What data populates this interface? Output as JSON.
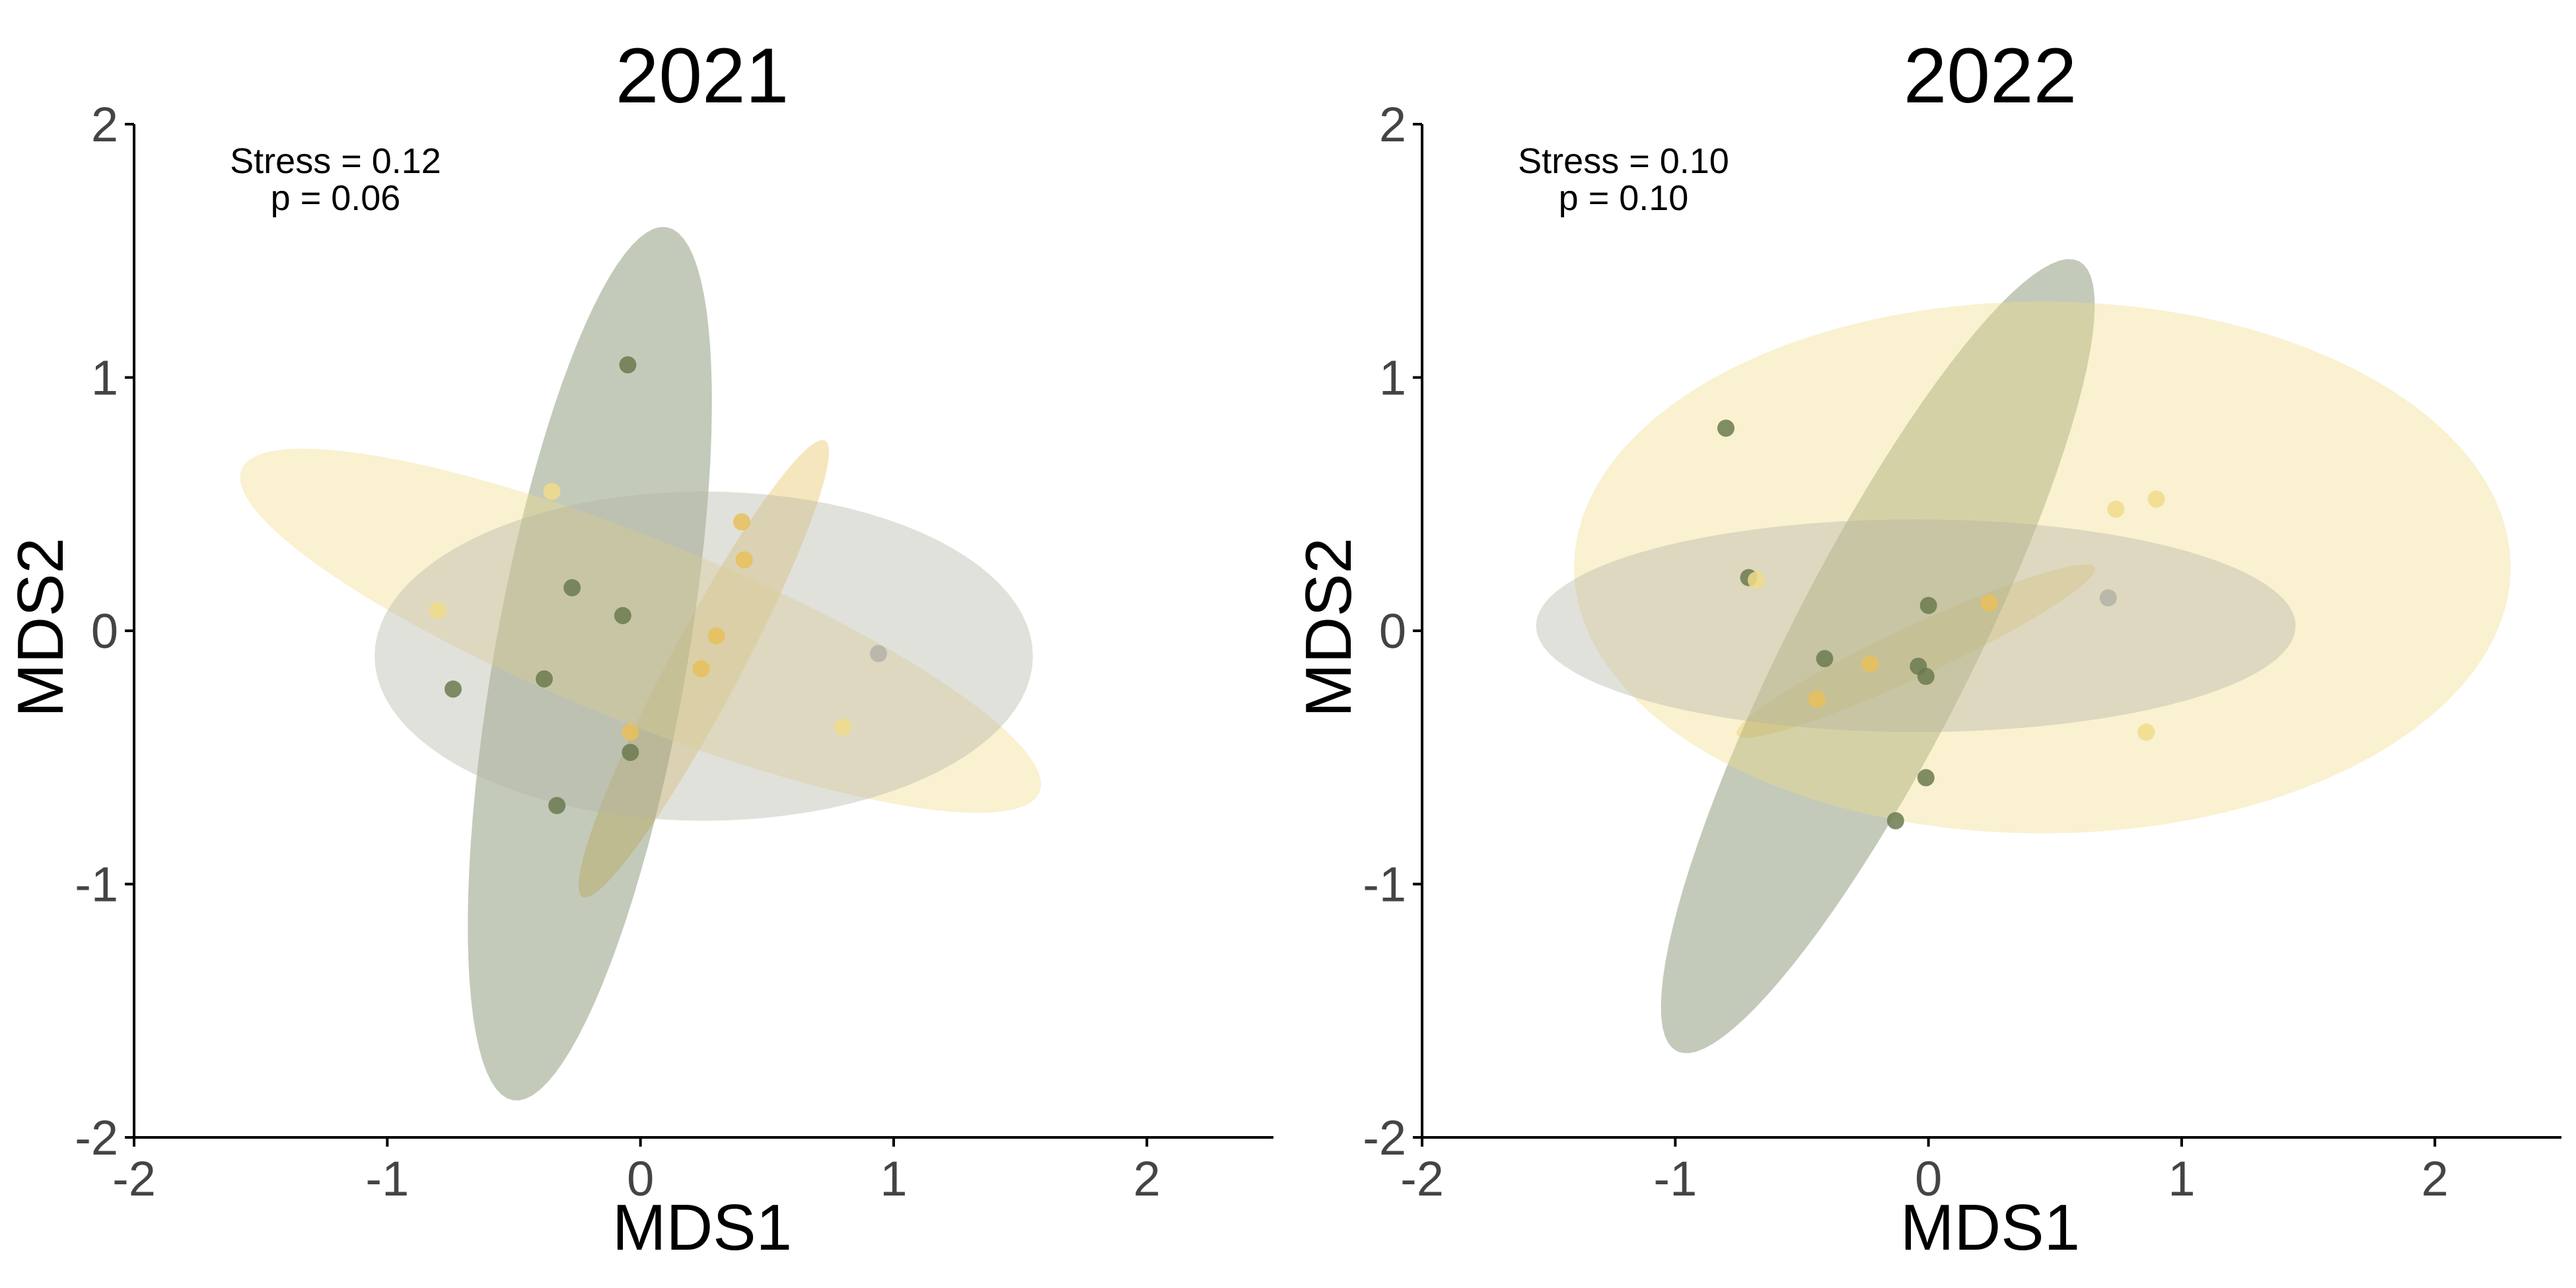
{
  "chart_data": [
    {
      "type": "scatter",
      "title": "2021",
      "xlabel": "MDS1",
      "ylabel": "MDS2",
      "xlim": [
        -2,
        2.5
      ],
      "ylim": [
        -2,
        2
      ],
      "xticks": [
        -2,
        -1,
        0,
        1,
        2
      ],
      "yticks": [
        -2,
        -1,
        0,
        1,
        2
      ],
      "xtick_labels": [
        "-2",
        "-1",
        "0",
        "1",
        "2"
      ],
      "ytick_labels": [
        "-2",
        "-1",
        "0",
        "1",
        "2"
      ],
      "grid": false,
      "annotation": [
        "Stress = 0.12",
        "p = 0.06"
      ],
      "series": [
        {
          "color": "#e8c05a",
          "points": [
            [
              0.4,
              0.43
            ],
            [
              0.41,
              0.28
            ],
            [
              0.3,
              -0.02
            ],
            [
              0.24,
              -0.15
            ],
            [
              -0.04,
              -0.4
            ]
          ],
          "ellipse": {
            "cx": 0.25,
            "cy": -0.15,
            "a": 1.02,
            "b": 0.14,
            "angle_deg": 62
          }
        },
        {
          "color": "#6b7a4f",
          "points": [
            [
              -0.05,
              1.05
            ],
            [
              -0.27,
              0.17
            ],
            [
              -0.38,
              -0.19
            ],
            [
              -0.74,
              -0.23
            ],
            [
              -0.33,
              -0.69
            ],
            [
              -0.04,
              -0.48
            ],
            [
              -0.07,
              0.06
            ]
          ],
          "ellipse": {
            "cx": -0.2,
            "cy": -0.13,
            "a": 1.75,
            "b": 0.38,
            "angle_deg": 80
          }
        },
        {
          "color": "#f0dc8a",
          "points": [
            [
              -0.35,
              0.55
            ],
            [
              -0.8,
              0.08
            ],
            [
              0.8,
              -0.38
            ]
          ],
          "ellipse": {
            "cx": 0.0,
            "cy": 0.0,
            "a": 1.7,
            "b": 0.36,
            "angle_deg": -22
          }
        },
        {
          "color": "#b3b3a6",
          "points": [
            [
              0.94,
              -0.09
            ]
          ],
          "ellipse": {
            "cx": 0.25,
            "cy": -0.1,
            "a": 1.3,
            "b": 0.65,
            "angle_deg": 0
          }
        }
      ]
    },
    {
      "type": "scatter",
      "title": "2022",
      "xlabel": "MDS1",
      "ylabel": "MDS2",
      "xlim": [
        -2,
        2.5
      ],
      "ylim": [
        -2,
        2
      ],
      "xticks": [
        -2,
        -1,
        0,
        1,
        2
      ],
      "yticks": [
        -2,
        -1,
        0,
        1,
        2
      ],
      "xtick_labels": [
        "-2",
        "-1",
        "0",
        "1",
        "2"
      ],
      "ytick_labels": [
        "-2",
        "-1",
        "0",
        "1",
        "2"
      ],
      "grid": false,
      "annotation": [
        "Stress = 0.10",
        "p = 0.10"
      ],
      "series": [
        {
          "color": "#e8c05a",
          "points": [
            [
              0.24,
              0.11
            ],
            [
              -0.23,
              -0.13
            ],
            [
              -0.44,
              -0.27
            ]
          ],
          "ellipse": {
            "cx": -0.05,
            "cy": -0.08,
            "a": 0.78,
            "b": 0.1,
            "angle_deg": 25
          }
        },
        {
          "color": "#6b7a4f",
          "points": [
            [
              -0.8,
              0.8
            ],
            [
              -0.71,
              0.21
            ],
            [
              -0.41,
              -0.11
            ],
            [
              0.0,
              0.1
            ],
            [
              -0.04,
              -0.14
            ],
            [
              -0.01,
              -0.18
            ],
            [
              -0.01,
              -0.58
            ],
            [
              -0.13,
              -0.75
            ]
          ],
          "ellipse": {
            "cx": -0.2,
            "cy": -0.1,
            "a": 1.75,
            "b": 0.36,
            "angle_deg": 63
          }
        },
        {
          "color": "#f0dc8a",
          "points": [
            [
              0.74,
              0.48
            ],
            [
              0.9,
              0.52
            ],
            [
              0.86,
              -0.4
            ],
            [
              -0.68,
              0.2
            ]
          ],
          "ellipse": {
            "cx": 0.45,
            "cy": 0.25,
            "a": 1.85,
            "b": 1.05,
            "angle_deg": 0
          }
        },
        {
          "color": "#b3b3a6",
          "points": [
            [
              0.71,
              0.13
            ]
          ],
          "ellipse": {
            "cx": -0.05,
            "cy": 0.02,
            "a": 1.5,
            "b": 0.42,
            "angle_deg": 0
          }
        }
      ]
    }
  ]
}
